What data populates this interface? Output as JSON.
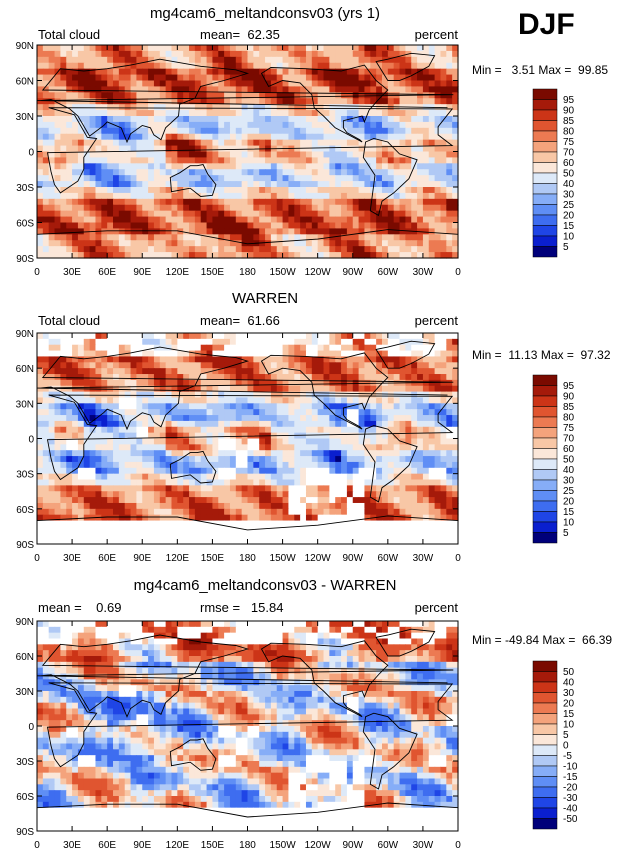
{
  "season": "DJF",
  "panels": [
    {
      "title": "mg4cam6_meltandconsv03 (yrs 1)",
      "left_label": "Total cloud",
      "mid_label": "mean=  62.35",
      "right_label": "percent",
      "minmax": "Min =   3.51 Max =  99.85",
      "legend_levels": [
        "95",
        "90",
        "85",
        "80",
        "75",
        "70",
        "60",
        "50",
        "40",
        "30",
        "25",
        "20",
        "15",
        "10",
        "5"
      ]
    },
    {
      "title": "WARREN",
      "left_label": "Total cloud",
      "mid_label": "mean=  61.66",
      "right_label": "percent",
      "minmax": "Min =  11.13 Max =  97.32",
      "legend_levels": [
        "95",
        "90",
        "85",
        "80",
        "75",
        "70",
        "60",
        "50",
        "40",
        "30",
        "25",
        "20",
        "15",
        "10",
        "5"
      ]
    },
    {
      "title": "mg4cam6_meltandconsv03 - WARREN",
      "left_label": "mean =    0.69",
      "mid_label": "rmse =   15.84",
      "right_label": "percent",
      "minmax": "Min = -49.84 Max =  66.39",
      "legend_levels": [
        "50",
        "40",
        "30",
        "20",
        "15",
        "10",
        "5",
        "0",
        "-5",
        "-10",
        "-15",
        "-20",
        "-30",
        "-40",
        "-50"
      ]
    }
  ],
  "axes": {
    "lat_ticks": [
      "90N",
      "60N",
      "30N",
      "0",
      "30S",
      "60S",
      "90S"
    ],
    "lon_ticks": [
      "0",
      "30E",
      "60E",
      "90E",
      "120E",
      "150E",
      "180",
      "150W",
      "120W",
      "90W",
      "60W",
      "30W",
      "0"
    ]
  },
  "colors": {
    "scale": [
      "#00007a",
      "#0a1fcf",
      "#1f45e6",
      "#3e6df0",
      "#5f8ef5",
      "#86adf7",
      "#b0c9f5",
      "#dde9f8",
      "#fbe7d9",
      "#f8c7a6",
      "#f4a37c",
      "#ec7a52",
      "#e05530",
      "#cc3417",
      "#a51a0a",
      "#7a0a00"
    ]
  }
}
